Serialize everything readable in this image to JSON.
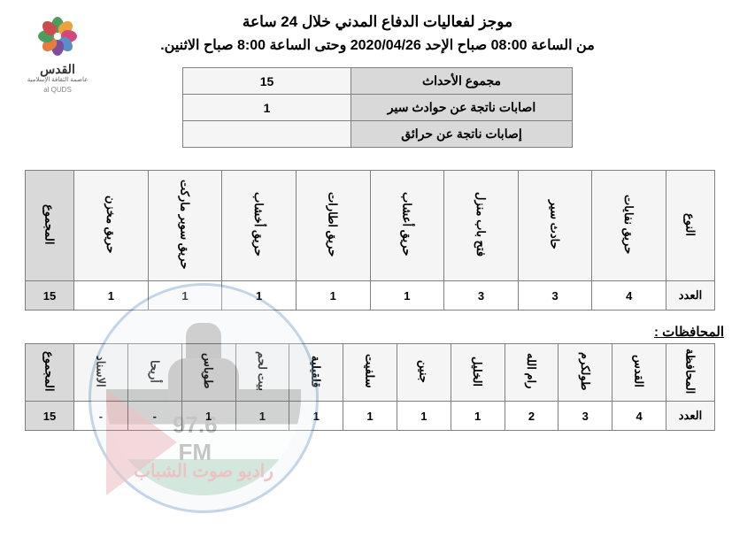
{
  "logo": {
    "title": "القدس",
    "subtitle": "عاصمة الثقافة الإسلامية",
    "en": "al QUDS",
    "petalColors": [
      "#4a9d5f",
      "#e8a33d",
      "#d4477a",
      "#5b8fc4",
      "#7d4e9c",
      "#e87b3d",
      "#4a9d5f",
      "#c94d4d"
    ]
  },
  "header": {
    "title": "موجز لفعاليات الدفاع المدني خلال 24 ساعة",
    "subtitle": "من الساعة 08:00 صباح الإحد 2020/04/26 وحتى الساعة 8:00 صباح الاثنين."
  },
  "summary": {
    "rows": [
      {
        "label": "مجموع الأحداث",
        "value": "15"
      },
      {
        "label": "اصابات ناتجة عن حوادث سير",
        "value": "1"
      },
      {
        "label": "إصابات ناتجة عن حرائق",
        "value": ""
      }
    ]
  },
  "typeTable": {
    "headerFirst": "النوع",
    "countLabel": "العدد",
    "totalLabel": "المجموع",
    "columns": [
      "حريق نفايات",
      "حادث سير",
      "فتح باب منزل",
      "حريق أعشاب",
      "حريق اطارات",
      "حريق أخشاب",
      "حريق سوبر ماركت",
      "حريق مخزن"
    ],
    "values": [
      "4",
      "3",
      "3",
      "1",
      "1",
      "1",
      "1",
      "1"
    ],
    "total": "15"
  },
  "govSection": {
    "label": "المحافظات :"
  },
  "govTable": {
    "headerFirst": "المحافظة",
    "countLabel": "العدد",
    "totalLabel": "المجموع",
    "columns": [
      "القدس",
      "طولكرم",
      "رام الله",
      "الخليل",
      "جنين",
      "سلفيت",
      "قلقيلية",
      "بيت لحم",
      "طوباس",
      "أريحا",
      "الاسناد"
    ],
    "values": [
      "4",
      "3",
      "2",
      "1",
      "1",
      "1",
      "1",
      "1",
      "1",
      "-",
      "-"
    ],
    "total": "15"
  },
  "watermark": {
    "freq": "97.6",
    "fm": "FM",
    "brand": "راديو صوت الشباب"
  },
  "colors": {
    "tableBorder": "#808080",
    "headerBg": "#d9d9d9",
    "cellBg": "#f5f5f5"
  }
}
